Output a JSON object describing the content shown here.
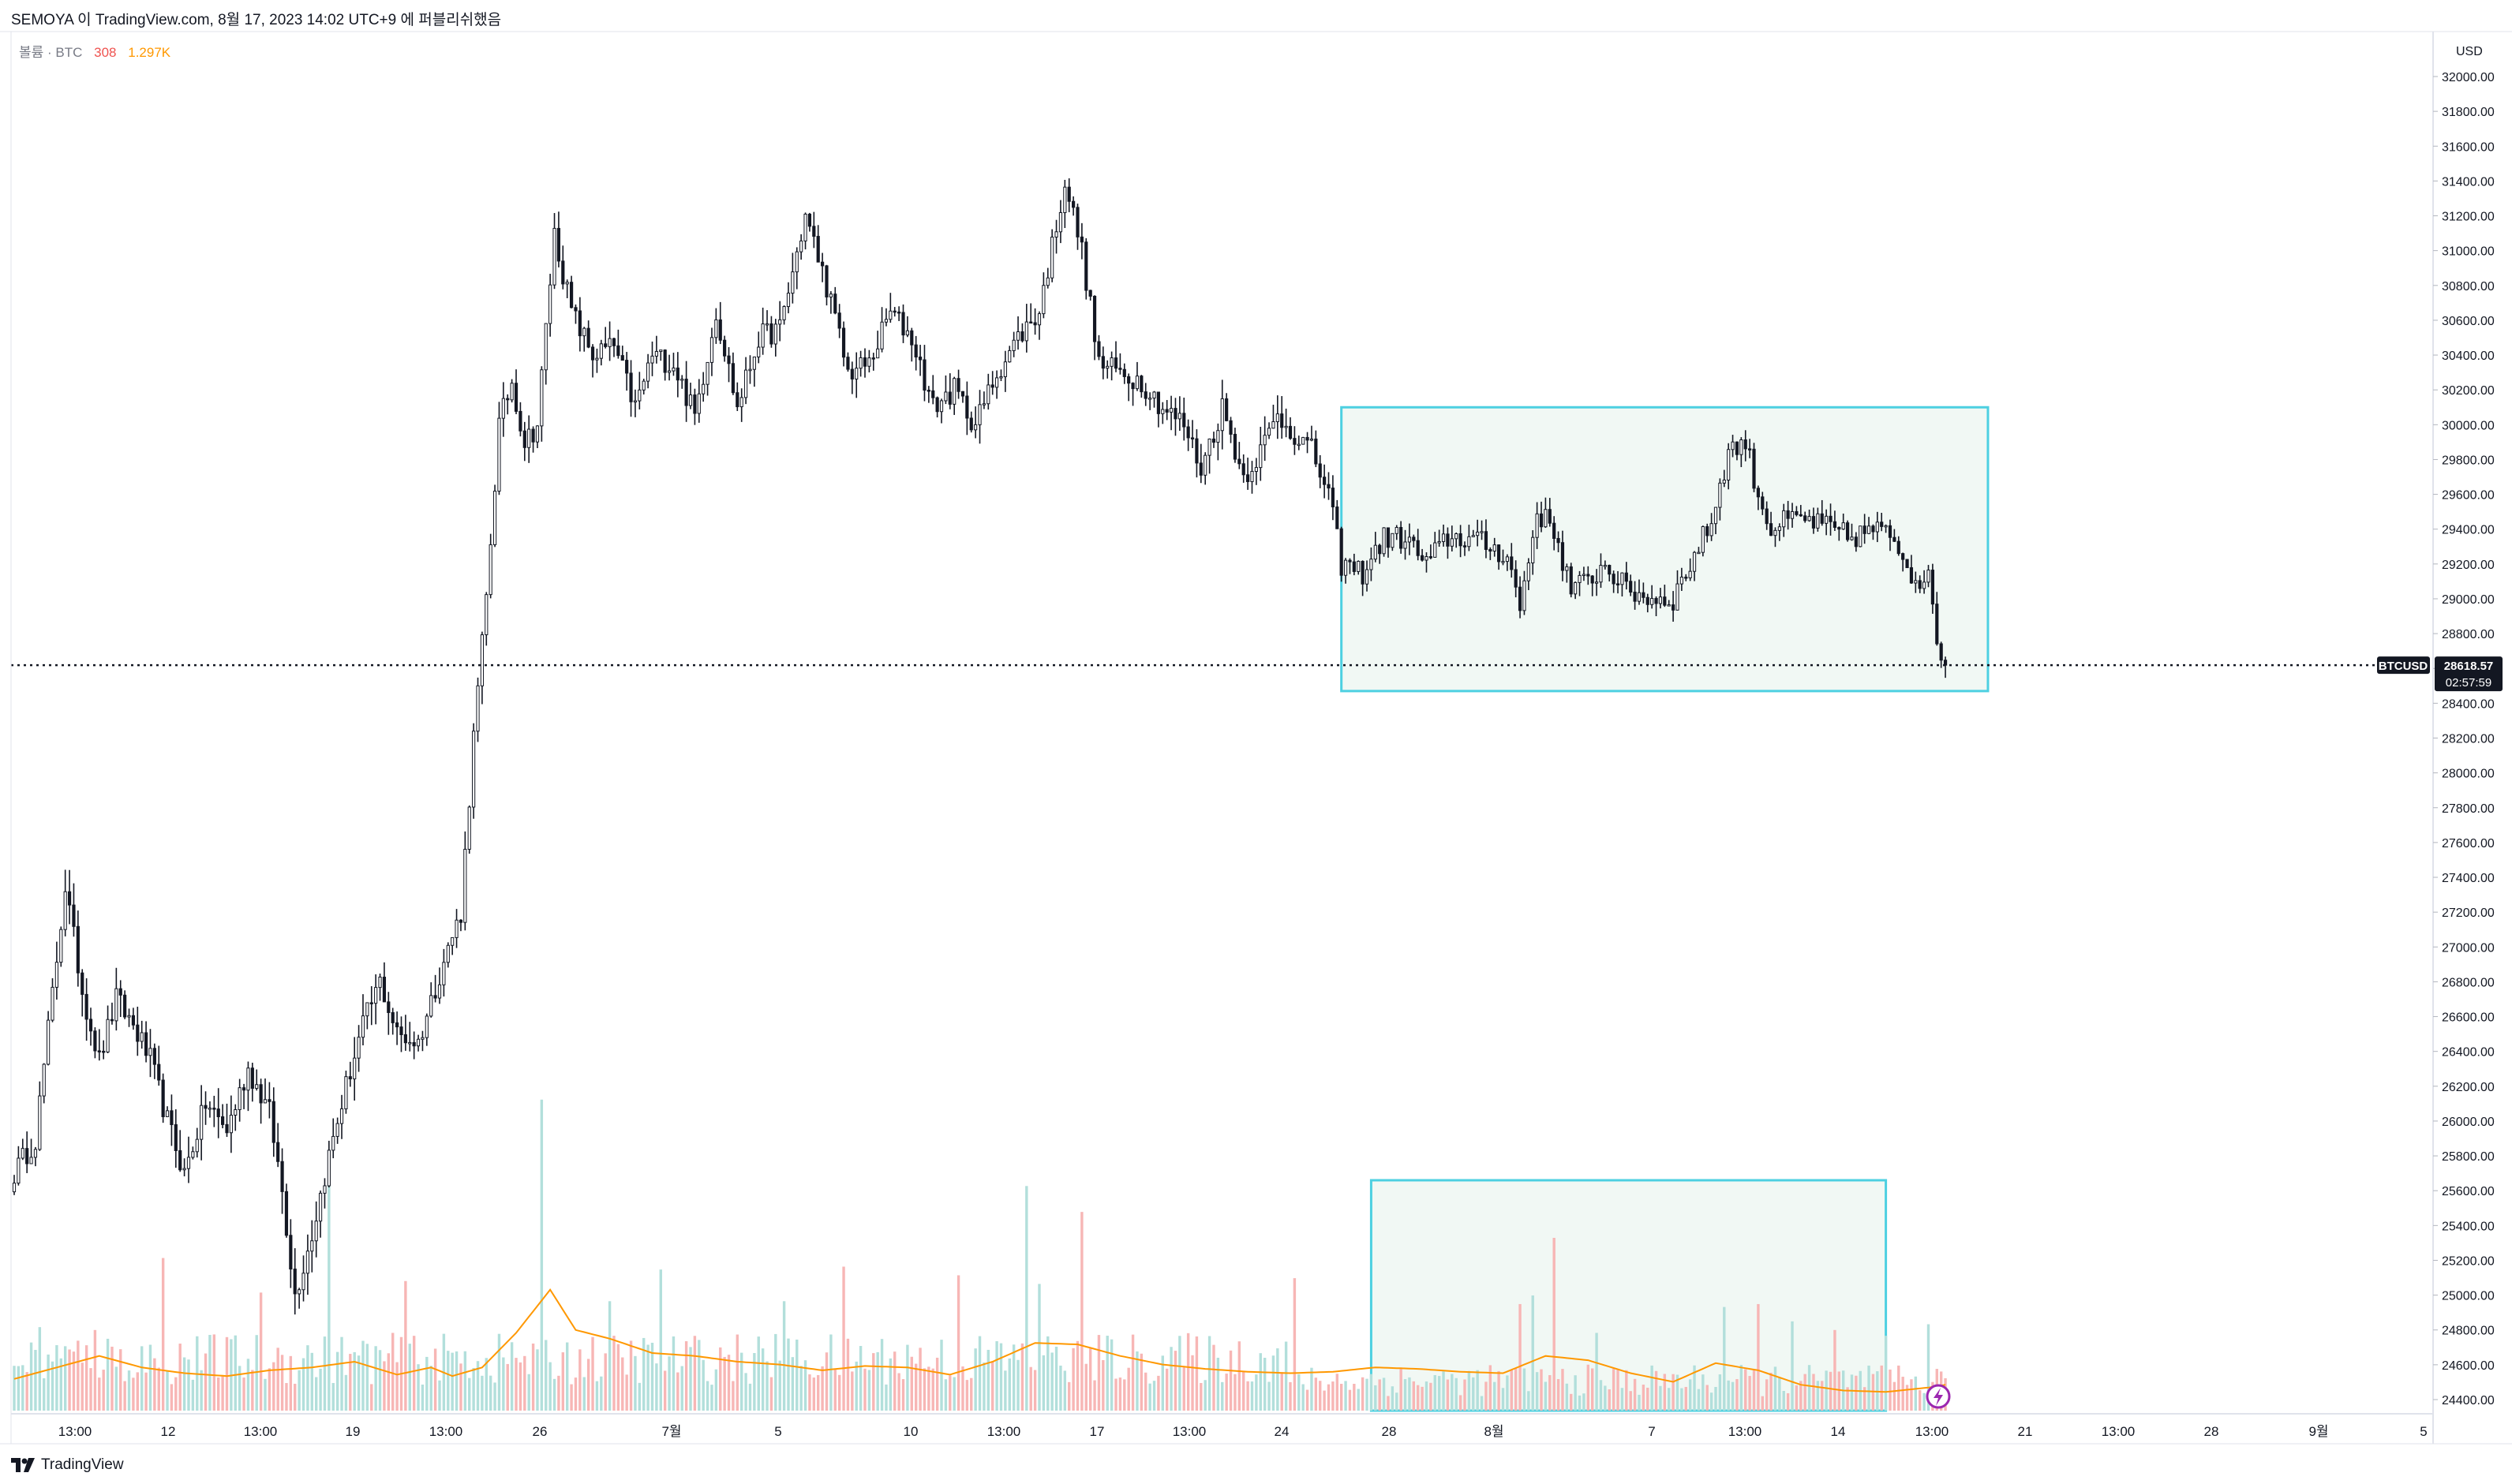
{
  "header": {
    "caption": "SEMOYA 이 TradingView.com, 8월 17, 2023 14:02 UTC+9 에 퍼블리쉬했음"
  },
  "legend": {
    "label": "볼륨 · BTC",
    "volume_value": "308",
    "volume_ma": "1.297K"
  },
  "currency_label": "USD",
  "footer": {
    "brand": "TradingView"
  },
  "colors": {
    "up": "#26a69a",
    "down": "#ef5350",
    "candle": "#131722",
    "vol_up": "#b2dfdb",
    "vol_down": "#f7b6b5",
    "ma": "#ff9800",
    "box_stroke": "#4dd0e1",
    "box_fill": "#f1f8f4",
    "axis_text": "#131722",
    "price_label_bg": "#131722"
  },
  "chart_data": {
    "type": "candlestick",
    "symbol": "BTCUSD",
    "last_price": 28618.57,
    "countdown": "02:57:59",
    "ylim": [
      24300,
      32150
    ],
    "y_ticks": [
      24400,
      24600,
      24800,
      25000,
      25200,
      25400,
      25600,
      25800,
      26000,
      26200,
      26400,
      26600,
      26800,
      27000,
      27200,
      27400,
      27600,
      27800,
      28000,
      28200,
      28400,
      28600,
      28800,
      29000,
      29200,
      29400,
      29600,
      29800,
      30000,
      30200,
      30400,
      30600,
      30800,
      31000,
      31200,
      31400,
      31600,
      31800,
      32000
    ],
    "x_ticks": [
      "13:00",
      "12",
      "13:00",
      "19",
      "13:00",
      "26",
      "7월",
      "5",
      "10",
      "13:00",
      "17",
      "13:00",
      "24",
      "28",
      "8월",
      "7",
      "13:00",
      "14",
      "13:00",
      "21",
      "13:00",
      "28",
      "9월",
      "5"
    ],
    "price_path": [
      [
        0,
        25700
      ],
      [
        5,
        25900
      ],
      [
        12,
        27350
      ],
      [
        16,
        26750
      ],
      [
        20,
        26350
      ],
      [
        24,
        26700
      ],
      [
        28,
        26550
      ],
      [
        32,
        26350
      ],
      [
        36,
        26000
      ],
      [
        40,
        25700
      ],
      [
        45,
        26100
      ],
      [
        50,
        25950
      ],
      [
        55,
        26300
      ],
      [
        60,
        26050
      ],
      [
        63,
        25600
      ],
      [
        66,
        25000
      ],
      [
        70,
        25350
      ],
      [
        74,
        25800
      ],
      [
        78,
        26200
      ],
      [
        82,
        26550
      ],
      [
        86,
        26800
      ],
      [
        90,
        26500
      ],
      [
        95,
        26450
      ],
      [
        100,
        26850
      ],
      [
        105,
        27200
      ],
      [
        108,
        28200
      ],
      [
        111,
        29000
      ],
      [
        114,
        30000
      ],
      [
        117,
        30250
      ],
      [
        120,
        29900
      ],
      [
        123,
        30000
      ],
      [
        127,
        31100
      ],
      [
        131,
        30650
      ],
      [
        136,
        30400
      ],
      [
        141,
        30450
      ],
      [
        146,
        30100
      ],
      [
        150,
        30400
      ],
      [
        155,
        30350
      ],
      [
        160,
        30050
      ],
      [
        165,
        30650
      ],
      [
        170,
        30100
      ],
      [
        175,
        30500
      ],
      [
        180,
        30550
      ],
      [
        186,
        31200
      ],
      [
        191,
        30800
      ],
      [
        196,
        30300
      ],
      [
        201,
        30350
      ],
      [
        206,
        30650
      ],
      [
        211,
        30500
      ],
      [
        216,
        30100
      ],
      [
        221,
        30200
      ],
      [
        226,
        30000
      ],
      [
        231,
        30300
      ],
      [
        236,
        30500
      ],
      [
        241,
        30650
      ],
      [
        247,
        31400
      ],
      [
        251,
        31000
      ],
      [
        255,
        30350
      ],
      [
        260,
        30300
      ],
      [
        265,
        30250
      ],
      [
        270,
        30100
      ],
      [
        275,
        30000
      ],
      [
        279,
        29750
      ],
      [
        284,
        30100
      ],
      [
        289,
        29700
      ],
      [
        293,
        29850
      ],
      [
        297,
        30050
      ],
      [
        301,
        29950
      ],
      [
        305,
        29850
      ],
      [
        309,
        29600
      ],
      [
        312,
        29200
      ],
      [
        317,
        29150
      ],
      [
        322,
        29350
      ],
      [
        327,
        29350
      ],
      [
        332,
        29200
      ],
      [
        337,
        29350
      ],
      [
        342,
        29350
      ],
      [
        347,
        29300
      ],
      [
        351,
        29250
      ],
      [
        354,
        28950
      ],
      [
        358,
        29500
      ],
      [
        362,
        29400
      ],
      [
        366,
        29050
      ],
      [
        370,
        29100
      ],
      [
        374,
        29200
      ],
      [
        379,
        29050
      ],
      [
        385,
        29000
      ],
      [
        390,
        29000
      ],
      [
        395,
        29250
      ],
      [
        399,
        29450
      ],
      [
        403,
        29850
      ],
      [
        407,
        29900
      ],
      [
        410,
        29600
      ],
      [
        413,
        29400
      ],
      [
        417,
        29450
      ],
      [
        422,
        29450
      ],
      [
        427,
        29400
      ],
      [
        432,
        29350
      ],
      [
        437,
        29400
      ],
      [
        442,
        29350
      ],
      [
        446,
        29150
      ],
      [
        450,
        29100
      ],
      [
        453,
        28650
      ],
      [
        454,
        28618.57
      ]
    ],
    "volume": {
      "ylim": [
        0,
        12000
      ],
      "spikes": [
        [
          6,
          2900
        ],
        [
          19,
          2800
        ],
        [
          35,
          5300
        ],
        [
          58,
          4100
        ],
        [
          74,
          8700
        ],
        [
          92,
          4500
        ],
        [
          124,
          10800
        ],
        [
          140,
          3800
        ],
        [
          152,
          4900
        ],
        [
          181,
          3800
        ],
        [
          195,
          5000
        ],
        [
          222,
          4700
        ],
        [
          238,
          7800
        ],
        [
          241,
          4400
        ],
        [
          251,
          6900
        ],
        [
          301,
          4600
        ],
        [
          354,
          3700
        ],
        [
          357,
          4000
        ],
        [
          362,
          6000
        ],
        [
          372,
          2700
        ],
        [
          402,
          3600
        ],
        [
          410,
          3700
        ],
        [
          418,
          3100
        ],
        [
          428,
          2800
        ],
        [
          440,
          2600
        ],
        [
          450,
          3000
        ]
      ],
      "ma_path": [
        [
          0,
          1100
        ],
        [
          10,
          1500
        ],
        [
          20,
          1900
        ],
        [
          30,
          1500
        ],
        [
          40,
          1300
        ],
        [
          50,
          1200
        ],
        [
          60,
          1400
        ],
        [
          70,
          1500
        ],
        [
          80,
          1700
        ],
        [
          90,
          1250
        ],
        [
          98,
          1500
        ],
        [
          103,
          1200
        ],
        [
          110,
          1500
        ],
        [
          118,
          2700
        ],
        [
          126,
          4200
        ],
        [
          132,
          2800
        ],
        [
          140,
          2500
        ],
        [
          150,
          2000
        ],
        [
          160,
          1900
        ],
        [
          170,
          1700
        ],
        [
          180,
          1600
        ],
        [
          190,
          1400
        ],
        [
          200,
          1550
        ],
        [
          210,
          1500
        ],
        [
          220,
          1250
        ],
        [
          230,
          1700
        ],
        [
          240,
          2350
        ],
        [
          250,
          2300
        ],
        [
          260,
          1900
        ],
        [
          270,
          1600
        ],
        [
          280,
          1450
        ],
        [
          290,
          1350
        ],
        [
          300,
          1300
        ],
        [
          310,
          1350
        ],
        [
          320,
          1500
        ],
        [
          330,
          1450
        ],
        [
          340,
          1350
        ],
        [
          350,
          1300
        ],
        [
          360,
          1900
        ],
        [
          370,
          1750
        ],
        [
          380,
          1300
        ],
        [
          390,
          1000
        ],
        [
          400,
          1650
        ],
        [
          410,
          1400
        ],
        [
          420,
          900
        ],
        [
          430,
          700
        ],
        [
          440,
          650
        ],
        [
          450,
          800
        ],
        [
          454,
          900
        ]
      ]
    },
    "range_boxes": [
      {
        "from": 312,
        "to": 464,
        "ylim": [
          28470,
          30100
        ]
      },
      {
        "volume_box": true,
        "from": 319,
        "to": 440,
        "vol_top": 8000
      }
    ]
  }
}
